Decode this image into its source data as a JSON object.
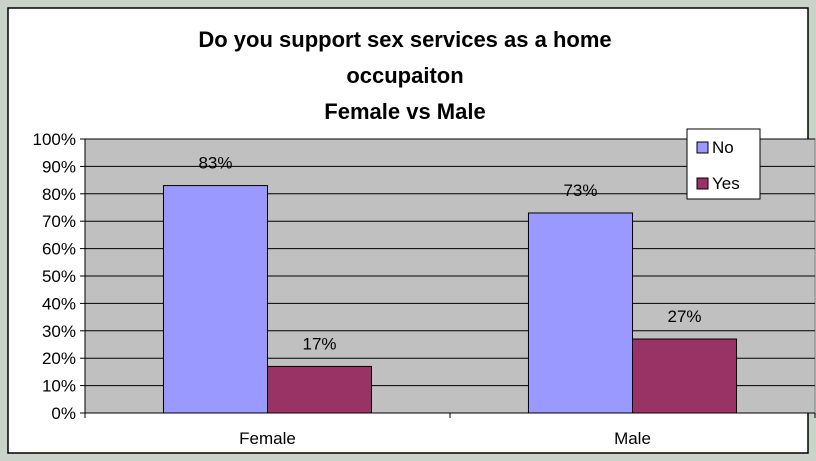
{
  "colors": {
    "frame_outer": "#c9d3c9",
    "chart_border": "#000000",
    "plot_background": "#c0c0c0",
    "gridline": "#000000",
    "series_no": "#9999ff",
    "series_yes": "#993366"
  },
  "chart_data": {
    "type": "bar",
    "title_lines": [
      "Do you support sex services as a home",
      "occupaiton",
      "Female vs Male"
    ],
    "categories": [
      "Female",
      "Male"
    ],
    "series": [
      {
        "name": "No",
        "values": [
          83,
          73
        ],
        "labels": [
          "83%",
          "73%"
        ]
      },
      {
        "name": "Yes",
        "values": [
          17,
          27
        ],
        "labels": [
          "17%",
          "27%"
        ]
      }
    ],
    "ylim": [
      0,
      100
    ],
    "yticks": [
      0,
      10,
      20,
      30,
      40,
      50,
      60,
      70,
      80,
      90,
      100
    ],
    "ytick_labels": [
      "0%",
      "10%",
      "20%",
      "30%",
      "40%",
      "50%",
      "60%",
      "70%",
      "80%",
      "90%",
      "100%"
    ],
    "xlabel": "",
    "ylabel": "",
    "grid": true,
    "legend_position": "top-right"
  }
}
